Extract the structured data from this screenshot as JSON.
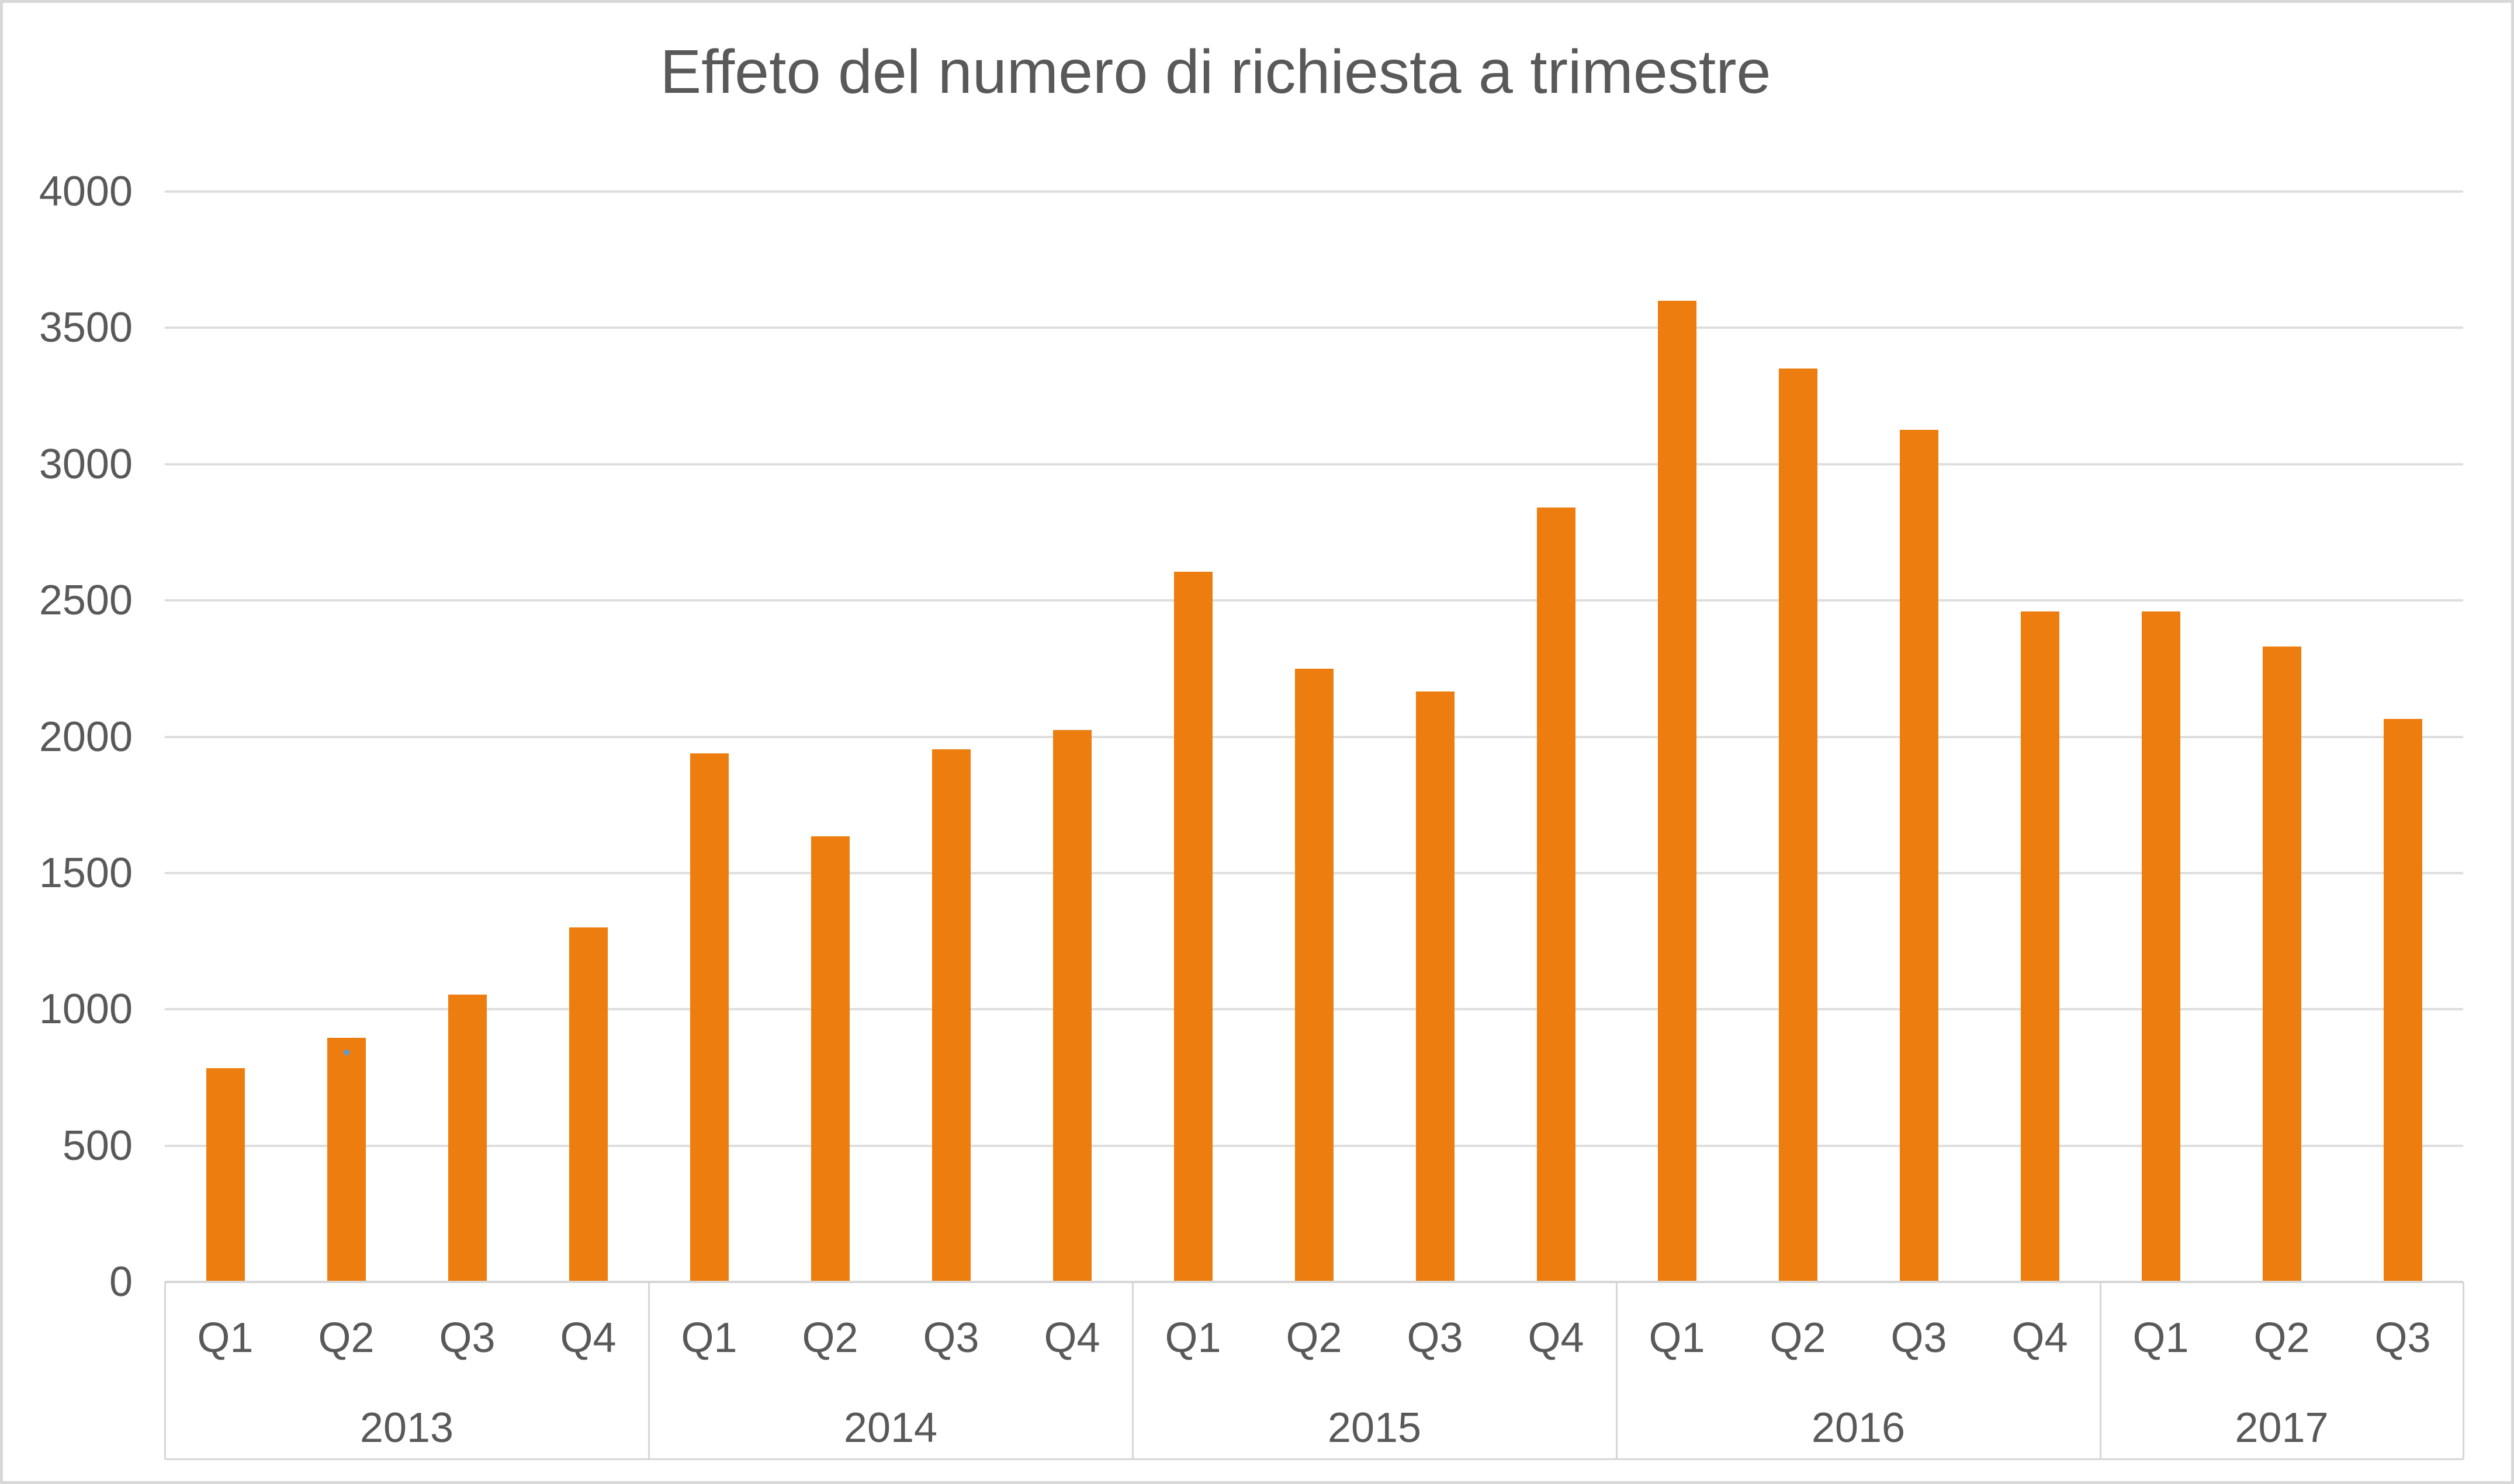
{
  "chart_data": {
    "type": "bar",
    "title": "Effeto del numero di richiesta a trimestre",
    "legend": "none",
    "grid": "horizontal",
    "ylim": [
      0,
      4000
    ],
    "ytick_step": 500,
    "ytick_labels": [
      "0",
      "500",
      "1000",
      "1500",
      "2000",
      "2500",
      "3000",
      "3500",
      "4000"
    ],
    "categories": [
      {
        "year": "2013",
        "quarters": [
          "Q1",
          "Q2",
          "Q3",
          "Q4"
        ]
      },
      {
        "year": "2014",
        "quarters": [
          "Q1",
          "Q2",
          "Q3",
          "Q4"
        ]
      },
      {
        "year": "2015",
        "quarters": [
          "Q1",
          "Q2",
          "Q3",
          "Q4"
        ]
      },
      {
        "year": "2016",
        "quarters": [
          "Q1",
          "Q2",
          "Q3",
          "Q4"
        ]
      },
      {
        "year": "2017",
        "quarters": [
          "Q1",
          "Q2",
          "Q3"
        ]
      }
    ],
    "series": [
      {
        "name": "Numero di richiesta",
        "values_by_year": [
          [
            785,
            895,
            1055,
            1300
          ],
          [
            1940,
            1635,
            1955,
            2025
          ],
          [
            2605,
            2250,
            2165,
            2840
          ],
          [
            3600,
            3350,
            3125,
            2460
          ],
          [
            2460,
            2330,
            2065
          ]
        ]
      }
    ],
    "colors": {
      "bar": "#ED7D0E",
      "gridline": "#DEDEDE",
      "axis_line": "#D6D6D6",
      "label_text": "#595959",
      "title_text": "#595959",
      "frame_border": "#D8D8D8",
      "artifact_dot": "#5B9BD5"
    },
    "artifact_dot": {
      "on_bar": "2013-Q2",
      "color": "#5B9BD5"
    }
  }
}
